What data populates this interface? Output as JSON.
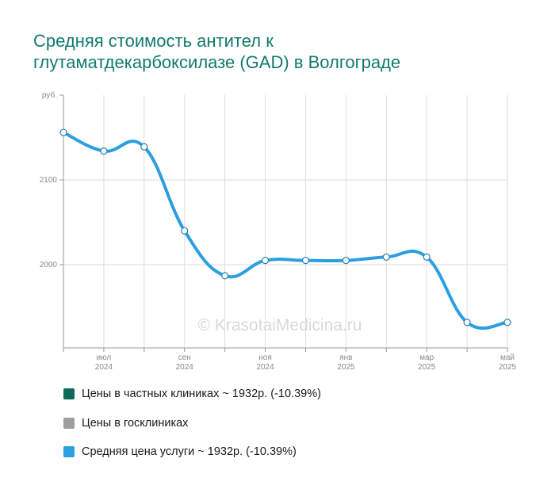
{
  "title_lines": [
    "Средняя стоимость антител к",
    "глутаматдекарбоксилазе (GAD) в Волгограде"
  ],
  "watermark": "© KrasotaiMedicina.ru",
  "legend": [
    {
      "label": "Цены в частных клиниках ~ 1932р. (-10.39%)",
      "color": "#0e6b5c"
    },
    {
      "label": "Цены в госклиниках",
      "color": "#9e9e9e"
    },
    {
      "label": "Средняя цена услуги ~ 1932р. (-10.39%)",
      "color": "#2b9fe0"
    }
  ],
  "chart_data": {
    "type": "line",
    "y_unit_label": "руб.",
    "y_ticks": [
      2000,
      2100
    ],
    "x_ticks": [
      {
        "month": "июл",
        "year": "2024"
      },
      {
        "month": "сен",
        "year": "2024"
      },
      {
        "month": "ноя",
        "year": "2024"
      },
      {
        "month": "янв",
        "year": "2025"
      },
      {
        "month": "мар",
        "year": "2025"
      },
      {
        "month": "май",
        "year": "2025"
      }
    ],
    "x": [
      "2024-06",
      "2024-07",
      "2024-08",
      "2024-09",
      "2024-10",
      "2024-11",
      "2024-12",
      "2025-01",
      "2025-02",
      "2025-03",
      "2025-04",
      "2025-05"
    ],
    "series": [
      {
        "name": "Средняя цена услуги",
        "color": "#2b9fe0",
        "values": [
          2156,
          2134,
          2139,
          2040,
          1987,
          2005,
          2005,
          2005,
          2009,
          2009,
          1932,
          1932
        ]
      }
    ],
    "ylim": [
      1900,
      2200
    ],
    "grid": true
  }
}
